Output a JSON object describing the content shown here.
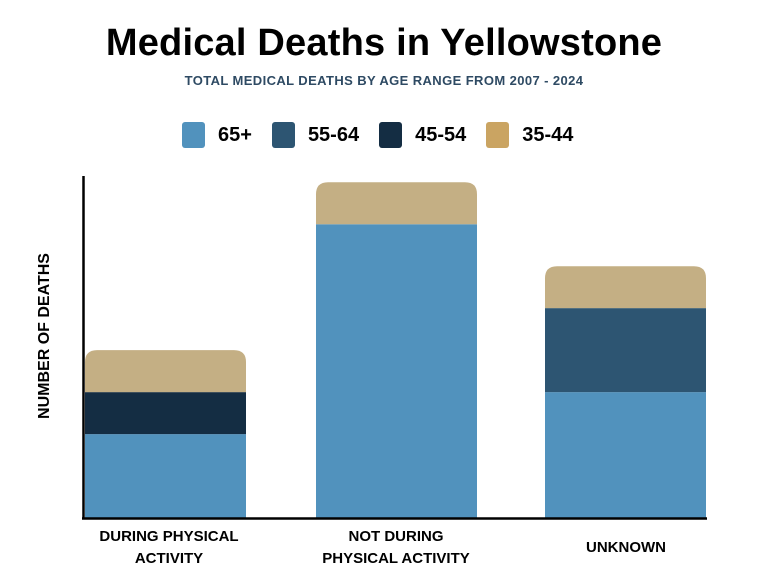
{
  "chart_data": {
    "type": "bar",
    "stacked": true,
    "title": "Medical Deaths in Yellowstone",
    "subtitle": "TOTAL MEDICAL DEATHS  BY AGE RANGE FROM 2007 - 2024",
    "xlabel": "",
    "ylabel": "NUMBER OF DEATHS",
    "ylim": [
      0,
      8.15
    ],
    "grid": false,
    "legend_position": "top",
    "categories": [
      [
        "DURING PHYSICAL",
        "ACTIVITY"
      ],
      [
        "NOT DURING",
        "PHYSICAL ACTIVITY"
      ],
      [
        "UNKNOWN"
      ]
    ],
    "series": [
      {
        "name": "65+",
        "color": "#5192bd",
        "values": [
          2,
          7,
          3
        ]
      },
      {
        "name": "55-64",
        "color": "#2d5572",
        "values": [
          0,
          0,
          2
        ]
      },
      {
        "name": "45-54",
        "color": "#142d43",
        "values": [
          1,
          0,
          0
        ]
      },
      {
        "name": "35-44",
        "color": "#c4af84",
        "legend_color": "#caa462",
        "values": [
          1,
          1,
          1
        ]
      }
    ]
  }
}
